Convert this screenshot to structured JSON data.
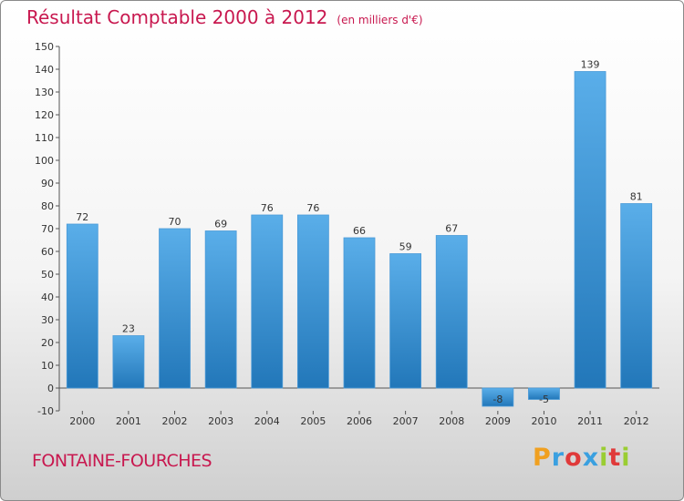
{
  "chart_data": {
    "type": "bar",
    "title": "Résultat Comptable 2000 à 2012",
    "subtitle": "(en milliers d'€)",
    "categories": [
      "2000",
      "2001",
      "2002",
      "2003",
      "2004",
      "2005",
      "2006",
      "2007",
      "2008",
      "2009",
      "2010",
      "2011",
      "2012"
    ],
    "values": [
      72,
      23,
      70,
      69,
      76,
      76,
      66,
      59,
      67,
      -8,
      -5,
      139,
      81
    ],
    "ylim": [
      -10,
      150
    ],
    "yticks": [
      -10,
      0,
      10,
      20,
      30,
      40,
      50,
      60,
      70,
      80,
      90,
      100,
      110,
      120,
      130,
      140,
      150
    ],
    "grid": false,
    "bar_color_top": "#5aaee9",
    "bar_color_bottom": "#2277b9"
  },
  "commune": "FONTAINE-FOURCHES",
  "logo": {
    "letters": [
      "P",
      "r",
      "o",
      "x",
      "i",
      "t",
      "i"
    ],
    "colors": [
      "#f0a020",
      "#3aa0e0",
      "#e03a3a",
      "#3aa0e0",
      "#9acd32",
      "#e03a3a",
      "#9acd32"
    ]
  },
  "colors": {
    "accent": "#c8184f"
  }
}
